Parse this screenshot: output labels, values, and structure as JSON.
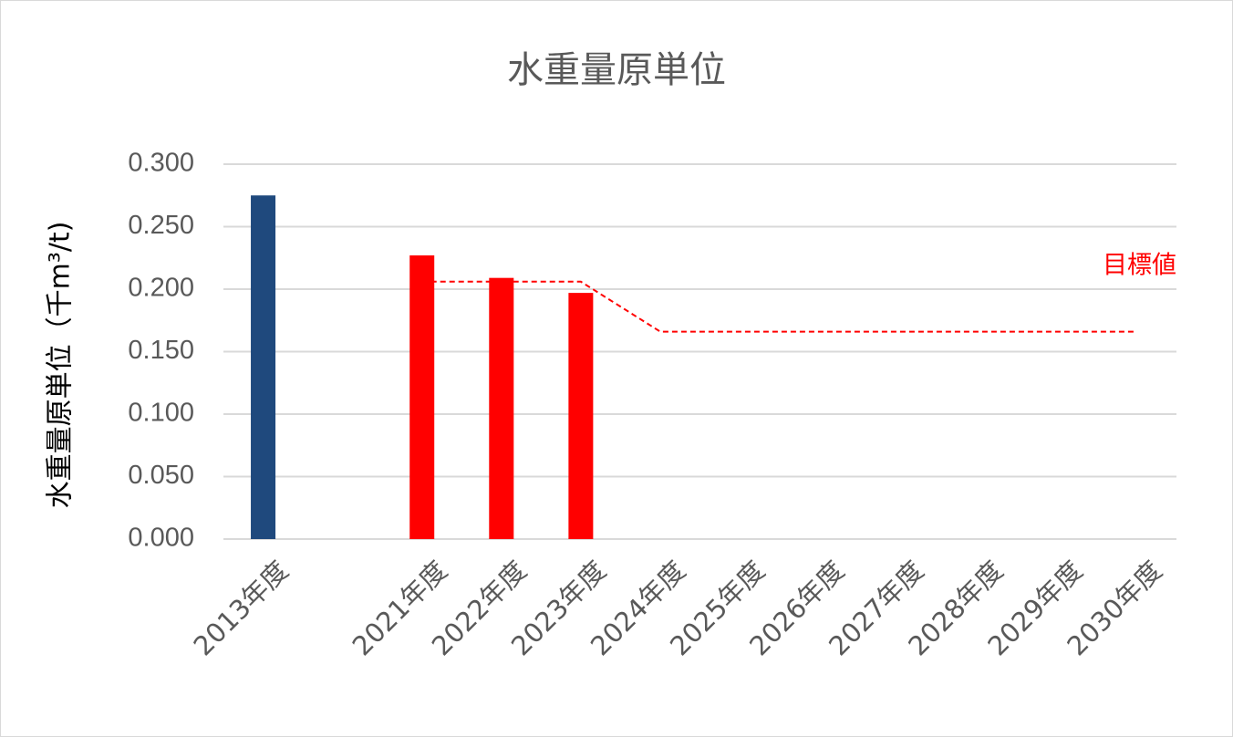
{
  "chart_data": {
    "type": "bar",
    "title": "水重量原単位",
    "xlabel": "",
    "ylabel": "水重量原単位（千m³/t)",
    "categories": [
      "2013年度",
      "",
      "2021年度",
      "2022年度",
      "2023年度",
      "2024年度",
      "2025年度",
      "2026年度",
      "2027年度",
      "2028年度",
      "2029年度",
      "2030年度"
    ],
    "values": [
      0.275,
      null,
      0.227,
      0.209,
      0.197,
      null,
      null,
      null,
      null,
      null,
      null,
      null
    ],
    "bar_colors": [
      "#1f497d",
      null,
      "#ff0000",
      "#ff0000",
      "#ff0000",
      null,
      null,
      null,
      null,
      null,
      null,
      null
    ],
    "ylim": [
      0,
      0.3
    ],
    "yticks": [
      "0.000",
      "0.050",
      "0.100",
      "0.150",
      "0.200",
      "0.250",
      "0.300"
    ],
    "grid": true,
    "target_line": {
      "label": "目標値",
      "color": "#ff0000",
      "style": "dashed",
      "points": [
        {
          "category": "2021年度",
          "value": 0.206
        },
        {
          "category": "2023年度",
          "value": 0.206
        },
        {
          "category": "2024年度",
          "value": 0.166
        },
        {
          "category": "2030年度",
          "value": 0.166
        }
      ]
    }
  }
}
